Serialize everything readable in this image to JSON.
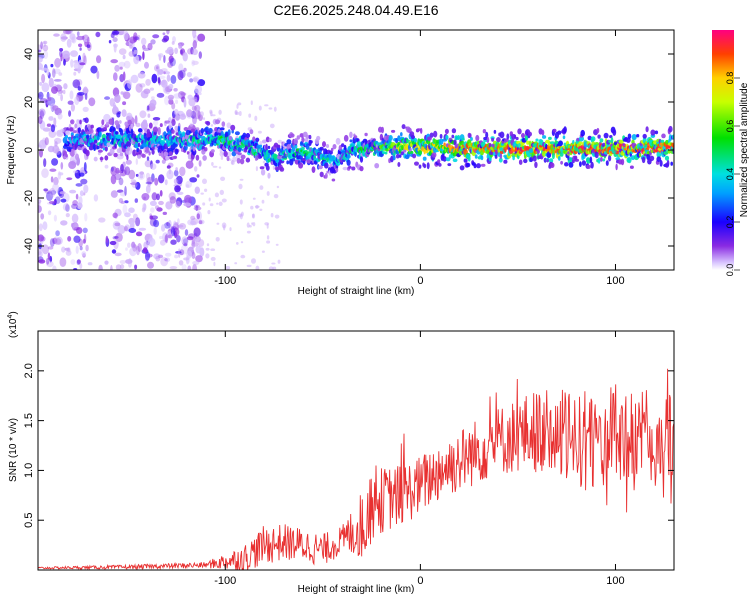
{
  "title": "C2E6.2025.248.04.49.E16",
  "chart_data": [
    {
      "type": "scatter",
      "name": "spectrogram",
      "xlabel": "Height of straight line (km)",
      "ylabel": "Frequency (Hz)",
      "xlim": [
        -196,
        130
      ],
      "ylim": [
        -50,
        50
      ],
      "xticks": [
        -100,
        0,
        100
      ],
      "xtick_labels": [
        "-100",
        "0",
        "100"
      ],
      "yticks": [
        -40,
        -20,
        0,
        20,
        40
      ],
      "ytick_labels": [
        "-40",
        "-20",
        "0",
        "20",
        "40"
      ],
      "colorbar": {
        "label": "Normalized spectral amplitude",
        "range": [
          0,
          1
        ],
        "ticks": [
          0.0,
          0.2,
          0.4,
          0.6,
          0.8
        ],
        "tick_labels": [
          "0.0",
          "0.2",
          "0.4",
          "0.6",
          "0.8"
        ]
      },
      "ridge": {
        "x": [
          -180,
          -165,
          -150,
          -135,
          -120,
          -110,
          -100,
          -90,
          -80,
          -75,
          -70,
          -60,
          -50,
          -45,
          -40,
          -35,
          -30,
          -20,
          -10,
          0,
          10,
          20,
          40,
          60,
          80,
          100,
          120,
          130
        ],
        "y": [
          4,
          4,
          4,
          4,
          4,
          4,
          4,
          2,
          -2,
          -4,
          -2,
          0,
          -3,
          -5,
          -3,
          0,
          0,
          1,
          2,
          1,
          1,
          0.5,
          0.5,
          0.5,
          0.5,
          0.5,
          1,
          1.5
        ],
        "amplitude": [
          0.35,
          0.4,
          0.42,
          0.4,
          0.45,
          0.45,
          0.5,
          0.5,
          0.45,
          0.4,
          0.45,
          0.5,
          0.45,
          0.4,
          0.4,
          0.45,
          0.5,
          0.6,
          0.7,
          0.75,
          0.8,
          0.85,
          0.9,
          0.92,
          0.92,
          0.92,
          0.9,
          0.9
        ]
      }
    },
    {
      "type": "line",
      "name": "snr",
      "xlabel": "Height of straight line (km)",
      "ylabel": "SNR (10 * v/v)",
      "multiplier": "(x10",
      "multiplier_exp": "4",
      "multiplier_close": ")",
      "xlim": [
        -196,
        130
      ],
      "ylim": [
        0,
        2.4
      ],
      "xticks": [
        -100,
        0,
        100
      ],
      "xtick_labels": [
        "-100",
        "0",
        "100"
      ],
      "yticks": [
        0.5,
        1.0,
        1.5,
        2.0
      ],
      "ytick_labels": [
        "0.5",
        "1.0",
        "1.5",
        "2.0"
      ],
      "color": "#e83030",
      "envelope_x": [
        -196,
        -150,
        -110,
        -90,
        -80,
        -70,
        -60,
        -50,
        -40,
        -30,
        -25,
        -20,
        -10,
        0,
        10,
        20,
        30,
        40,
        50,
        60,
        70,
        80,
        90,
        100,
        110,
        120,
        130
      ],
      "envelope_y": [
        0.02,
        0.03,
        0.05,
        0.12,
        0.25,
        0.28,
        0.25,
        0.2,
        0.3,
        0.45,
        0.6,
        0.7,
        0.75,
        0.85,
        1.0,
        1.1,
        1.2,
        1.3,
        1.35,
        1.4,
        1.35,
        1.3,
        1.3,
        1.35,
        1.3,
        1.25,
        1.2
      ],
      "noise_x": [
        -196,
        -110,
        -80,
        -40,
        -30,
        0,
        40,
        80,
        130
      ],
      "noise_y": [
        0.01,
        0.03,
        0.2,
        0.15,
        0.35,
        0.3,
        0.35,
        0.5,
        0.55
      ]
    }
  ]
}
